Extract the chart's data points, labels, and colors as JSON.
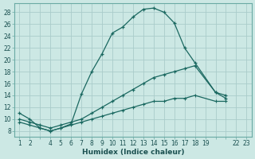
{
  "xlabel": "Humidex (Indice chaleur)",
  "bg_color": "#cce8e4",
  "grid_color": "#aaccca",
  "line_color": "#1a6860",
  "ylim": [
    7,
    29.5
  ],
  "yticks": [
    8,
    10,
    12,
    14,
    16,
    18,
    20,
    22,
    24,
    26,
    28
  ],
  "xtick_labels": [
    "1",
    "2",
    "",
    "4",
    "5",
    "6",
    "7",
    "8",
    "9",
    "10",
    "11",
    "12",
    "13",
    "14",
    "15",
    "16",
    "17",
    "18",
    "19",
    "",
    "",
    "22",
    "23"
  ],
  "line1_x": [
    0,
    1,
    2,
    3,
    4,
    5,
    6,
    7,
    8,
    9,
    10,
    11,
    12,
    13,
    14,
    15,
    16,
    17,
    19,
    20
  ],
  "line1_y": [
    11,
    10,
    8.5,
    8.0,
    8.5,
    9.2,
    14.2,
    18.0,
    21.0,
    24.5,
    25.5,
    27.2,
    28.5,
    28.7,
    28.0,
    26.2,
    22.0,
    19.5,
    14.5,
    13.5
  ],
  "line2_x": [
    0,
    1,
    2,
    3,
    4,
    5,
    6,
    7,
    8,
    9,
    10,
    11,
    12,
    13,
    14,
    15,
    16,
    17,
    19,
    20
  ],
  "line2_y": [
    10.0,
    9.5,
    9.0,
    8.5,
    9.0,
    9.5,
    10.0,
    11.0,
    12.0,
    13.0,
    14.0,
    15.0,
    16.0,
    17.0,
    17.5,
    18.0,
    18.5,
    19.0,
    14.5,
    14.0
  ],
  "line3_x": [
    0,
    1,
    2,
    3,
    4,
    5,
    6,
    7,
    8,
    9,
    10,
    11,
    12,
    13,
    14,
    15,
    16,
    17,
    19,
    20
  ],
  "line3_y": [
    9.5,
    9.0,
    8.5,
    8.0,
    8.5,
    9.0,
    9.5,
    10.0,
    10.5,
    11.0,
    11.5,
    12.0,
    12.5,
    13.0,
    13.0,
    13.5,
    13.5,
    14.0,
    13.0,
    13.0
  ]
}
